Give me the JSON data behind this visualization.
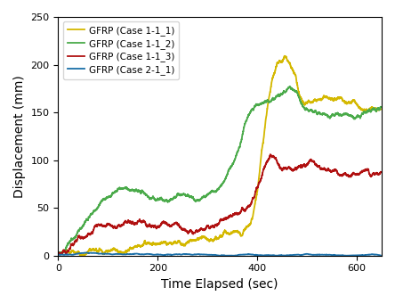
{
  "title": "",
  "xlabel": "Time Elapsed (sec)",
  "ylabel": "Displacement (mm)",
  "xlim": [
    0,
    650
  ],
  "ylim": [
    0,
    250
  ],
  "yticks": [
    0.0,
    50.0,
    100.0,
    150.0,
    200.0,
    250.0
  ],
  "xticks": [
    0,
    200,
    400,
    600
  ],
  "legend_labels": [
    "GFRP (Case 1-1_1)",
    "GFRP (Case 1-1_2)",
    "GFRP (Case 1-1_3)",
    "GFRP (Case 2-1_1)"
  ],
  "colors": [
    "#d4b800",
    "#4aaa4a",
    "#b01010",
    "#1a6fa8"
  ],
  "linewidths": [
    1.3,
    1.3,
    1.3,
    1.3
  ],
  "background_color": "#ffffff"
}
